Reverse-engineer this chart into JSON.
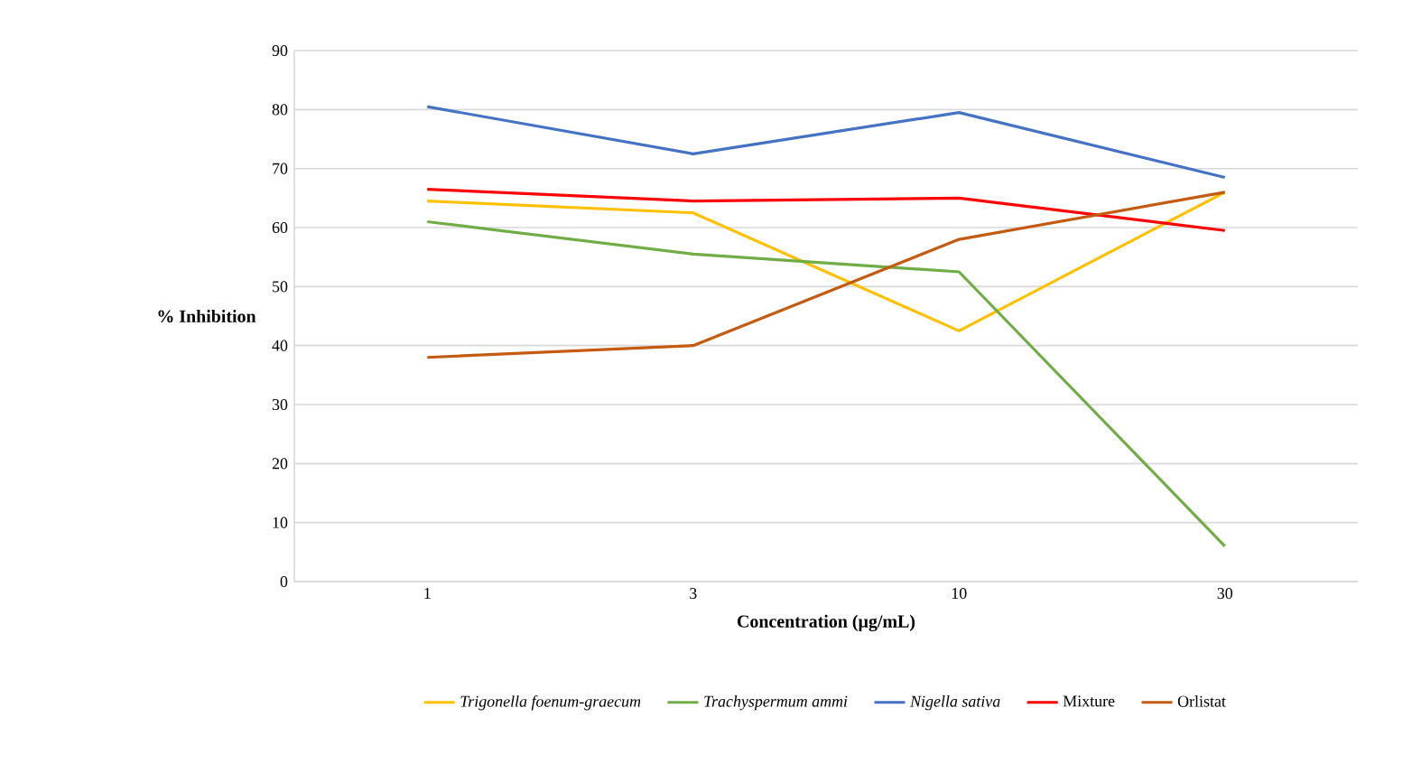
{
  "chart_data": {
    "type": "line",
    "xlabel": "Concentration (µg/mL)",
    "ylabel": "% Inhibition",
    "categories": [
      "1",
      "3",
      "10",
      "30"
    ],
    "ylim": [
      0,
      90
    ],
    "yticks": [
      0,
      10,
      20,
      30,
      40,
      50,
      60,
      70,
      80,
      90
    ],
    "grid": "y",
    "legend": "bottom",
    "marker": "none",
    "line_style": "solid",
    "series": [
      {
        "name": "*Trigonella foenum-graecum*",
        "color": "#ffc000",
        "values": [
          64.5,
          62.5,
          42.5,
          66
        ]
      },
      {
        "name": "*Trachyspermum ammi*",
        "color": "#70ad47",
        "values": [
          61,
          55.5,
          52.5,
          6
        ]
      },
      {
        "name": "*Nigella sativa*",
        "color": "#4472c4",
        "values": [
          80.5,
          72.5,
          79.5,
          68.5
        ]
      },
      {
        "name": "Mixture",
        "color": "#ff0000",
        "values": [
          66.5,
          64.5,
          65,
          59.5
        ]
      },
      {
        "name": "Orlistat",
        "color": "#c55a11",
        "values": [
          38,
          40,
          58,
          66
        ]
      }
    ]
  }
}
